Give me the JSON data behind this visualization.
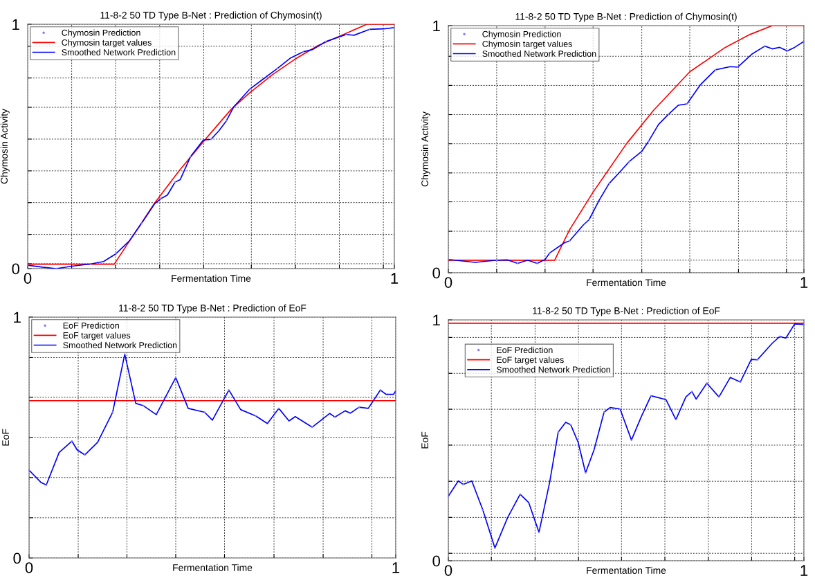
{
  "chart_data": [
    {
      "type": "line",
      "title": "11-8-2 50 TD Type B-Net : Prediction of Chymosin(t)",
      "xlabel": "Fermentation Time",
      "ylabel": "Chymosin Activity",
      "xlim": [
        0,
        1
      ],
      "ylim": [
        0,
        1
      ],
      "xticks": [
        0,
        {
          "value": 0.12,
          "label": null
        },
        {
          "value": 0.24,
          "label": null
        },
        {
          "value": 0.36,
          "label": null
        },
        {
          "value": 0.48,
          "label": null
        },
        {
          "value": 0.61,
          "label": null
        },
        {
          "value": 0.73,
          "label": null
        },
        {
          "value": 0.85,
          "label": null
        },
        {
          "value": 0.97,
          "label": null
        },
        1
      ],
      "yticks": [
        0,
        {
          "value": 0.02,
          "label": null
        },
        {
          "value": 0.14,
          "label": null
        },
        {
          "value": 0.27,
          "label": null
        },
        {
          "value": 0.4,
          "label": null
        },
        {
          "value": 0.53,
          "label": null
        },
        {
          "value": 0.66,
          "label": null
        },
        {
          "value": 0.78,
          "label": null
        },
        {
          "value": 0.91,
          "label": null
        },
        1
      ],
      "grid": true,
      "legend": "top left",
      "series": [
        {
          "name": "Chymosin Prediction",
          "type": "scatter",
          "marker": "circle",
          "color": "#8080ff",
          "x": [
            0,
            0.078,
            0.172,
            0.241,
            0.311,
            0.363,
            0.402,
            0.444,
            0.5,
            0.542,
            0.606,
            0.681,
            0.751,
            0.813,
            0.869,
            0.932,
            1.0
          ],
          "values": [
            0.014,
            0.0,
            0.019,
            0.061,
            0.186,
            0.286,
            0.354,
            0.458,
            0.529,
            0.605,
            0.735,
            0.819,
            0.887,
            0.929,
            0.958,
            0.979,
            0.986
          ]
        },
        {
          "name": "Chymosin target values",
          "type": "line",
          "color": "#ff0000",
          "x": [
            0,
            0.236,
            0.346,
            0.416,
            0.484,
            0.555,
            0.606,
            0.667,
            0.728,
            0.792,
            0.849,
            0.925,
            1.0
          ],
          "values": [
            0.018,
            0.018,
            0.268,
            0.406,
            0.528,
            0.652,
            0.72,
            0.793,
            0.856,
            0.913,
            0.95,
            1.0,
            1.0
          ]
        },
        {
          "name": "Smoothed Network Prediction",
          "type": "line",
          "color": "#0000ff",
          "x": [
            0,
            0.04,
            0.078,
            0.121,
            0.172,
            0.207,
            0.241,
            0.277,
            0.311,
            0.346,
            0.363,
            0.381,
            0.402,
            0.416,
            0.444,
            0.479,
            0.5,
            0.521,
            0.542,
            0.562,
            0.606,
            0.639,
            0.681,
            0.716,
            0.751,
            0.778,
            0.813,
            0.849,
            0.869,
            0.89,
            0.932,
            0.971,
            1.0
          ],
          "values": [
            0.014,
            0.006,
            0.0,
            0.01,
            0.019,
            0.029,
            0.061,
            0.113,
            0.186,
            0.265,
            0.286,
            0.301,
            0.354,
            0.364,
            0.458,
            0.526,
            0.529,
            0.563,
            0.605,
            0.662,
            0.735,
            0.772,
            0.819,
            0.861,
            0.887,
            0.897,
            0.929,
            0.948,
            0.958,
            0.955,
            0.979,
            0.981,
            0.986
          ]
        }
      ]
    },
    {
      "type": "line",
      "title": "11-8-2 50 TD Type B-Net : Prediction of Chymosin(t)",
      "xlabel": "Fermentation Time",
      "ylabel": "Chymosin Activity",
      "xlim": [
        0,
        1
      ],
      "ylim": [
        0,
        1
      ],
      "xticks": [
        0,
        {
          "value": 0.136,
          "label": null
        },
        {
          "value": 0.272,
          "label": null
        },
        {
          "value": 0.407,
          "label": null
        },
        {
          "value": 0.544,
          "label": null
        },
        {
          "value": 0.679,
          "label": null
        },
        {
          "value": 0.816,
          "label": null
        },
        {
          "value": 0.951,
          "label": null
        },
        1
      ],
      "yticks": [
        0,
        {
          "value": 0.051,
          "label": null
        },
        {
          "value": 0.168,
          "label": null
        },
        {
          "value": 0.287,
          "label": null
        },
        {
          "value": 0.404,
          "label": null
        },
        {
          "value": 0.522,
          "label": null
        },
        {
          "value": 0.64,
          "label": null
        },
        {
          "value": 0.758,
          "label": null
        },
        {
          "value": 0.876,
          "label": null
        },
        1
      ],
      "grid": true,
      "legend": "top left",
      "series": [
        {
          "name": "Chymosin Prediction",
          "type": "scatter",
          "marker": "circle",
          "color": "#8080ff",
          "x": [
            0,
            0.136,
            0.195,
            0.25,
            0.285,
            0.341,
            0.396,
            0.452,
            0.508,
            0.563,
            0.619,
            0.671,
            0.751,
            0.814,
            0.89,
            0.953,
            1.0
          ],
          "values": [
            0.054,
            0.051,
            0.038,
            0.038,
            0.08,
            0.129,
            0.215,
            0.361,
            0.449,
            0.532,
            0.641,
            0.683,
            0.821,
            0.832,
            0.917,
            0.898,
            0.936
          ]
        },
        {
          "name": "Chymosin target values",
          "type": "line",
          "color": "#ff0000",
          "x": [
            0,
            0.299,
            0.341,
            0.407,
            0.501,
            0.577,
            0.679,
            0.779,
            0.848,
            0.911,
            1.0
          ],
          "values": [
            0.051,
            0.051,
            0.174,
            0.326,
            0.522,
            0.657,
            0.813,
            0.912,
            0.964,
            1.0,
            1.0
          ]
        },
        {
          "name": "Smoothed Network Prediction",
          "type": "line",
          "color": "#0000ff",
          "x": [
            0,
            0.076,
            0.136,
            0.167,
            0.195,
            0.223,
            0.25,
            0.272,
            0.285,
            0.327,
            0.341,
            0.38,
            0.396,
            0.424,
            0.452,
            0.48,
            0.508,
            0.544,
            0.563,
            0.591,
            0.619,
            0.647,
            0.671,
            0.709,
            0.751,
            0.793,
            0.814,
            0.855,
            0.89,
            0.911,
            0.932,
            0.953,
            0.974,
            1.0
          ],
          "values": [
            0.054,
            0.042,
            0.051,
            0.052,
            0.038,
            0.051,
            0.038,
            0.054,
            0.08,
            0.122,
            0.129,
            0.194,
            0.215,
            0.293,
            0.361,
            0.404,
            0.449,
            0.491,
            0.532,
            0.6,
            0.641,
            0.678,
            0.683,
            0.761,
            0.821,
            0.834,
            0.832,
            0.886,
            0.917,
            0.906,
            0.912,
            0.898,
            0.912,
            0.936
          ]
        }
      ]
    },
    {
      "type": "line",
      "title": "11-8-2 50 TD Type B-Net : Prediction of EoF",
      "xlabel": "Fermentation Time",
      "ylabel": "EoF",
      "xlim": [
        0,
        1
      ],
      "ylim": [
        0,
        1
      ],
      "xticks": [
        0,
        {
          "value": 0.134,
          "label": null
        },
        {
          "value": 0.267,
          "label": null
        },
        {
          "value": 0.4,
          "label": null
        },
        {
          "value": 0.533,
          "label": null
        },
        {
          "value": 0.668,
          "label": null
        },
        {
          "value": 0.802,
          "label": null
        },
        {
          "value": 0.935,
          "label": null
        },
        1
      ],
      "yticks": [
        0,
        {
          "value": 0.167,
          "label": null
        },
        {
          "value": 0.334,
          "label": null
        },
        {
          "value": 0.501,
          "label": null
        },
        {
          "value": 0.667,
          "label": null
        },
        {
          "value": 0.832,
          "label": null
        },
        1
      ],
      "grid": true,
      "legend": "top left",
      "series": [
        {
          "name": "EoF Prediction",
          "type": "scatter",
          "marker": "circle",
          "color": "#8080ff",
          "x": [
            0,
            0.047,
            0.117,
            0.152,
            0.228,
            0.261,
            0.312,
            0.4,
            0.479,
            0.545,
            0.618,
            0.681,
            0.772,
            0.834,
            0.9,
            0.958,
            1.0
          ],
          "values": [
            0.365,
            0.303,
            0.485,
            0.428,
            0.605,
            0.846,
            0.632,
            0.749,
            0.605,
            0.697,
            0.59,
            0.621,
            0.543,
            0.585,
            0.626,
            0.697,
            0.694
          ]
        },
        {
          "name": "EoF target values",
          "type": "line",
          "color": "#ff0000",
          "x": [
            0,
            1
          ],
          "values": [
            0.653,
            0.653
          ]
        },
        {
          "name": "Smoothed Network Prediction",
          "type": "line",
          "color": "#0000ff",
          "x": [
            0,
            0.033,
            0.047,
            0.082,
            0.117,
            0.131,
            0.152,
            0.187,
            0.228,
            0.261,
            0.291,
            0.312,
            0.347,
            0.4,
            0.434,
            0.479,
            0.5,
            0.545,
            0.577,
            0.618,
            0.65,
            0.681,
            0.709,
            0.726,
            0.772,
            0.82,
            0.834,
            0.862,
            0.876,
            0.9,
            0.925,
            0.958,
            0.974,
            0.994,
            1.0
          ],
          "values": [
            0.365,
            0.313,
            0.303,
            0.438,
            0.485,
            0.449,
            0.428,
            0.48,
            0.605,
            0.846,
            0.642,
            0.632,
            0.595,
            0.749,
            0.621,
            0.605,
            0.572,
            0.697,
            0.616,
            0.59,
            0.558,
            0.621,
            0.569,
            0.587,
            0.543,
            0.6,
            0.585,
            0.611,
            0.601,
            0.626,
            0.621,
            0.697,
            0.679,
            0.679,
            0.694
          ]
        }
      ]
    },
    {
      "type": "line",
      "title": "11-8-2 50 TD Type B-Net : Prediction of EoF",
      "xlabel": "Fermentation Time",
      "ylabel": "EoF",
      "xlim": [
        0,
        1
      ],
      "ylim": [
        0,
        1
      ],
      "xticks": [
        0,
        {
          "value": 0.121,
          "label": null
        },
        {
          "value": 0.244,
          "label": null
        },
        {
          "value": 0.366,
          "label": null
        },
        {
          "value": 0.487,
          "label": null
        },
        {
          "value": 0.609,
          "label": null
        },
        {
          "value": 0.731,
          "label": null
        },
        {
          "value": 0.853,
          "label": null
        },
        {
          "value": 0.974,
          "label": null
        },
        1
      ],
      "yticks": [
        0,
        {
          "value": 0.031,
          "label": null
        },
        {
          "value": 0.18,
          "label": null
        },
        {
          "value": 0.33,
          "label": null
        },
        {
          "value": 0.48,
          "label": null
        },
        {
          "value": 0.629,
          "label": null
        },
        {
          "value": 0.778,
          "label": null
        },
        {
          "value": 0.927,
          "label": null
        },
        1
      ],
      "grid": true,
      "legend": "top left",
      "series": [
        {
          "name": "EoF Prediction",
          "type": "scatter",
          "marker": "circle",
          "color": "#8080ff",
          "x": [
            0,
            0.042,
            0.097,
            0.131,
            0.202,
            0.255,
            0.309,
            0.344,
            0.386,
            0.438,
            0.483,
            0.515,
            0.57,
            0.64,
            0.685,
            0.727,
            0.761,
            0.821,
            0.869,
            0.932,
            1.0
          ],
          "values": [
            0.268,
            0.317,
            0.211,
            0.053,
            0.276,
            0.118,
            0.534,
            0.565,
            0.365,
            0.617,
            0.63,
            0.501,
            0.685,
            0.586,
            0.702,
            0.737,
            0.68,
            0.742,
            0.834,
            0.931,
            0.981
          ]
        },
        {
          "name": "EoF target values",
          "type": "line",
          "color": "#ff0000",
          "x": [
            0,
            1
          ],
          "values": [
            0.986,
            0.986
          ]
        },
        {
          "name": "Smoothed Network Prediction",
          "type": "line",
          "color": "#0000ff",
          "x": [
            0,
            0.028,
            0.042,
            0.066,
            0.097,
            0.131,
            0.167,
            0.202,
            0.226,
            0.255,
            0.285,
            0.309,
            0.33,
            0.344,
            0.365,
            0.386,
            0.41,
            0.438,
            0.455,
            0.483,
            0.515,
            0.542,
            0.57,
            0.612,
            0.64,
            0.668,
            0.685,
            0.697,
            0.727,
            0.761,
            0.793,
            0.821,
            0.852,
            0.869,
            0.911,
            0.932,
            0.949,
            0.974,
            1.0
          ],
          "values": [
            0.268,
            0.331,
            0.317,
            0.331,
            0.211,
            0.053,
            0.18,
            0.276,
            0.242,
            0.118,
            0.326,
            0.534,
            0.575,
            0.565,
            0.492,
            0.365,
            0.461,
            0.617,
            0.636,
            0.63,
            0.501,
            0.596,
            0.685,
            0.669,
            0.586,
            0.68,
            0.702,
            0.671,
            0.737,
            0.68,
            0.761,
            0.742,
            0.836,
            0.834,
            0.903,
            0.931,
            0.924,
            0.983,
            0.981
          ]
        }
      ]
    }
  ]
}
